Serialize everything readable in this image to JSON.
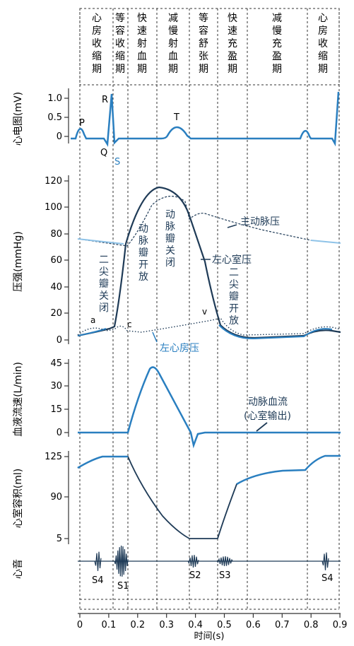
{
  "phases": [
    [
      "心",
      "房",
      "收",
      "缩",
      "期"
    ],
    [
      "等",
      "容",
      "收",
      "缩",
      "期"
    ],
    [
      "快",
      "速",
      "射",
      "血",
      "期"
    ],
    [
      "减",
      "慢",
      "射",
      "血",
      "期"
    ],
    [
      "等",
      "容",
      "舒",
      "张",
      "期"
    ],
    [
      "快",
      "速",
      "充",
      "盈",
      "期"
    ],
    [
      "减",
      "慢",
      "充",
      "盈",
      "期"
    ],
    [
      "心",
      "房",
      "收",
      "缩",
      "期"
    ]
  ],
  "panels": {
    "ecg": {
      "ylabel": "心电图(mV)",
      "ticks": [
        "1.0",
        "0.5",
        "0"
      ],
      "waves": {
        "p": "P",
        "r": "R",
        "q": "Q",
        "s": "S",
        "t": "T"
      }
    },
    "pressure": {
      "ylabel": "压强(mmHg)",
      "ticks": [
        "120",
        "100",
        "80",
        "60",
        "40",
        "20",
        "0"
      ],
      "labels": {
        "aorta": "主动脉压",
        "lv": "左心室压",
        "la": "左心房压",
        "aortic_open": "动脉瓣开放",
        "aortic_close": "动脉瓣关闭",
        "mitral_close": "二尖瓣关闭",
        "mitral_open": "二尖瓣开放",
        "a": "a",
        "c": "c",
        "v": "v"
      }
    },
    "flow": {
      "ylabel": "血液流速(L/min)",
      "ticks": [
        "45",
        "30",
        "15",
        "0"
      ],
      "label_1": "动脉血流",
      "label_2": "(心室输出)"
    },
    "volume": {
      "ylabel": "心室容积(ml)",
      "ticks": [
        "125",
        "90",
        "5"
      ]
    },
    "sound": {
      "ylabel": "心音",
      "labels": [
        "S4",
        "S1",
        "S2",
        "S3",
        "S4"
      ]
    }
  },
  "xaxis": {
    "ticks": [
      "0",
      "0.1",
      "0.2",
      "0.3",
      "0.4",
      "0.5",
      "0.6",
      "0.7",
      "0.8",
      "0.9"
    ],
    "label": "时间(s)"
  },
  "colors": {
    "blue": "#2a7fc0",
    "dark": "#1f3b57",
    "light": "#8fc3e8"
  }
}
